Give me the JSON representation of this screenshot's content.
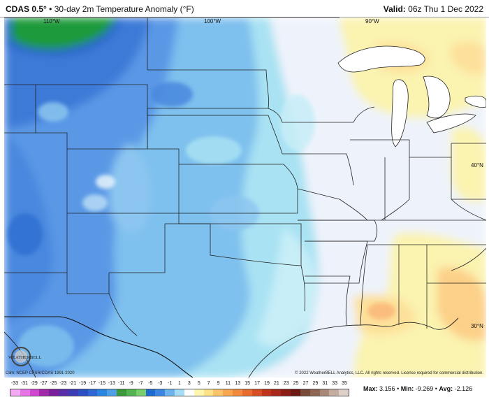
{
  "header": {
    "model": "CDAS 0.5°",
    "separator": "•",
    "product": "30-day 2m Temperature Anomaly (°F)",
    "valid_label": "Valid:",
    "valid_time": "06z Thu 1 Dec 2022"
  },
  "map": {
    "longitude_labels": [
      "110°W",
      "100°W",
      "90°W"
    ],
    "latitude_labels": [
      "40°N",
      "30°N"
    ]
  },
  "credits": {
    "clim": "Clim: NCEP CFSR/CDAS 1991-2020",
    "copyright": "© 2022 WeatherBELL Analytics, LLC. All rights reserved. License required for commercial distribution.",
    "logo_text": "WEATHERBELL"
  },
  "legend": {
    "ticks": [
      "-33",
      "-31",
      "-29",
      "-27",
      "-25",
      "-23",
      "-21",
      "-19",
      "-17",
      "-15",
      "-13",
      "-11",
      "-9",
      "-7",
      "-5",
      "-3",
      "-1",
      "1",
      "3",
      "5",
      "7",
      "9",
      "11",
      "13",
      "15",
      "17",
      "19",
      "21",
      "23",
      "25",
      "27",
      "29",
      "31",
      "33",
      "35"
    ],
    "colors": [
      "#f4a9f4",
      "#e674e6",
      "#d046d0",
      "#a02aa8",
      "#7a1e9c",
      "#5a2ea8",
      "#3c3cb4",
      "#2c50c4",
      "#2e68d6",
      "#2a86e0",
      "#4ea0e6",
      "#3c9a3c",
      "#52b452",
      "#7ace6c",
      "#1e6ad0",
      "#3a86e0",
      "#6eb4ec",
      "#a6dcf6",
      "#ffffff",
      "#fff6b0",
      "#fde28a",
      "#fcc46a",
      "#f9a650",
      "#f28a3e",
      "#e86c30",
      "#d84e26",
      "#c0341e",
      "#a8281c",
      "#8c1e18",
      "#6e1814",
      "#7a4a3a",
      "#8e6656",
      "#a88878",
      "#c4aca0",
      "#ded0c8"
    ]
  },
  "stats": {
    "max_label": "Max:",
    "max": "3.156",
    "min_label": "Min:",
    "min": "-9.269",
    "avg_label": "Avg:",
    "avg": "-2.126"
  }
}
